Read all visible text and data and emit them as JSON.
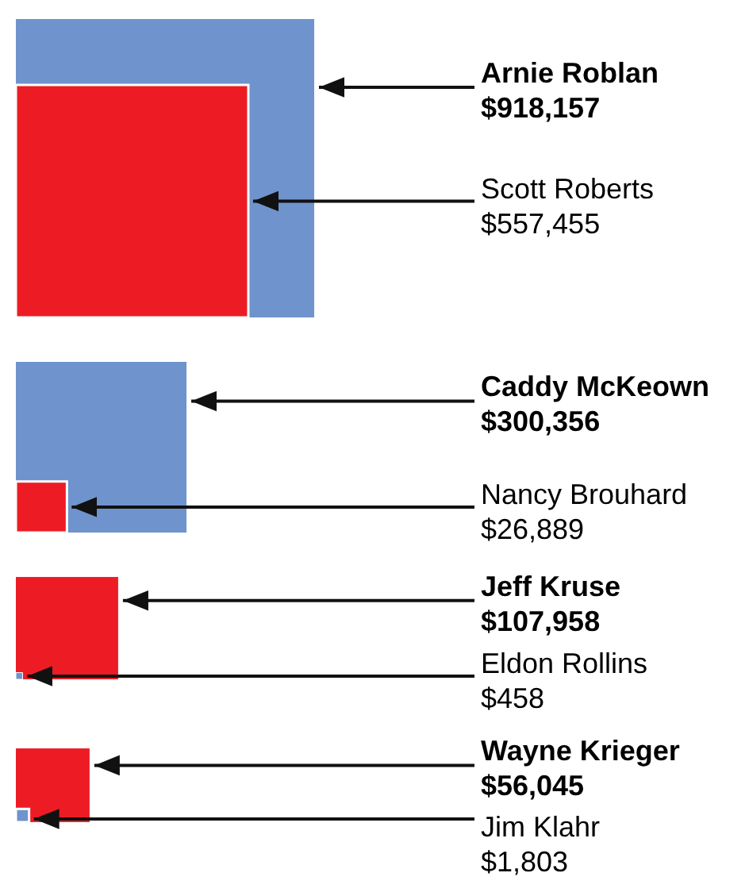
{
  "chart_data": {
    "type": "other",
    "categories": [
      "Arnie Roblan",
      "Scott Roberts",
      "Caddy McKeown",
      "Nancy Brouhard",
      "Jeff Kruse",
      "Eldon Rollins",
      "Wayne Krieger",
      "Jim Klahr"
    ],
    "values": [
      918157,
      557455,
      300356,
      26889,
      107958,
      458,
      56045,
      1803
    ],
    "value_labels": [
      "$918,157",
      "$557,455",
      "$300,356",
      "$26,889",
      "$107,958",
      "$458",
      "$56,045",
      "$1,803"
    ],
    "colors": [
      "#6f93cc",
      "#ed1c24",
      "#6f93cc",
      "#ed1c24",
      "#ed1c24",
      "#6f93cc",
      "#ed1c24",
      "#6f93cc"
    ]
  }
}
